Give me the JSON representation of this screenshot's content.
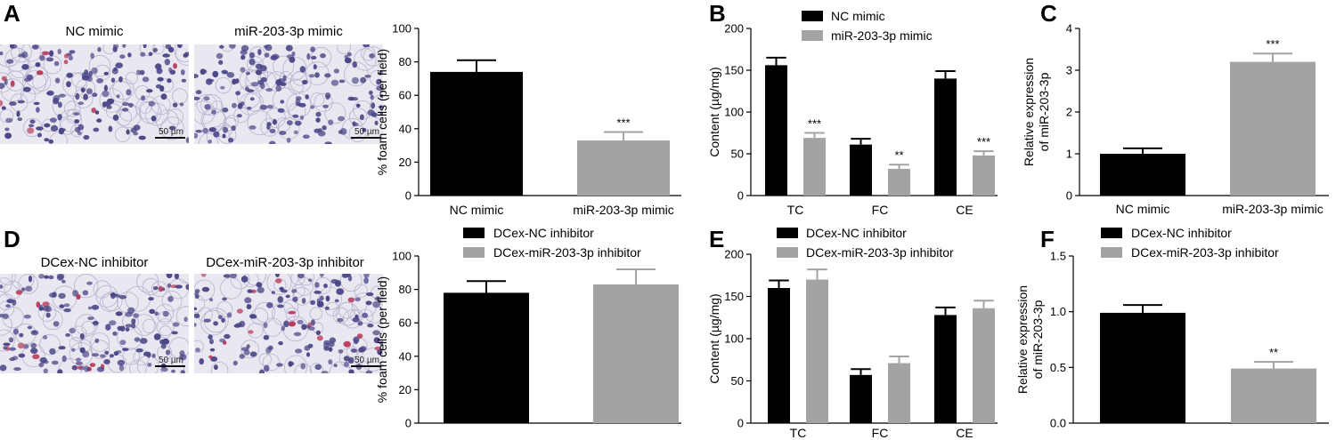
{
  "colors": {
    "black": "#000000",
    "gray": "#a3a3a3",
    "micro_bg": "#e9e7f0",
    "cell": "#4a4687",
    "red_cell": "#b8395a"
  },
  "panels": {
    "A": {
      "letter": "A",
      "images": [
        {
          "title": "NC mimic",
          "scale": "50 µm"
        },
        {
          "title": "miR-203-3p mimic",
          "scale": "50 µm"
        }
      ]
    },
    "D": {
      "letter": "D",
      "images": [
        {
          "title": "DCex-NC inhibitor",
          "scale": "50 µm"
        },
        {
          "title": "DCex-miR-203-3p inhibitor",
          "scale": "50 µm"
        }
      ]
    }
  },
  "chart_data": [
    {
      "id": "A_chart",
      "type": "bar",
      "ylabel": "% foam cells (per field)",
      "ylim": [
        0,
        100
      ],
      "yticks": [
        "0",
        "20",
        "40",
        "60",
        "80",
        "100"
      ],
      "categories": [
        "NC mimic",
        "miR-203-3p mimic"
      ],
      "values": [
        74,
        33
      ],
      "errors": [
        7,
        5
      ],
      "colors": [
        "#000000",
        "#a3a3a3"
      ],
      "annotations": [
        "",
        "***"
      ]
    },
    {
      "id": "B",
      "letter": "B",
      "type": "bar",
      "ylabel": "Content (µg/mg)",
      "ylim": [
        0,
        200
      ],
      "yticks": [
        "0",
        "50",
        "100",
        "150",
        "200"
      ],
      "categories": [
        "TC",
        "FC",
        "CE"
      ],
      "legend_position": "top-left",
      "series": [
        {
          "name": "NC mimic",
          "color": "#000000",
          "values": [
            156,
            61,
            140
          ],
          "errors": [
            9,
            7,
            9
          ],
          "annotations": [
            "",
            "",
            ""
          ]
        },
        {
          "name": "miR-203-3p mimic",
          "color": "#a3a3a3",
          "values": [
            69,
            32,
            48
          ],
          "errors": [
            6,
            5,
            5
          ],
          "annotations": [
            "***",
            "**",
            "***"
          ]
        }
      ]
    },
    {
      "id": "C",
      "letter": "C",
      "type": "bar",
      "ylabel": "Relative expression of miR-203-3p",
      "ylim": [
        0,
        4
      ],
      "yticks": [
        "0",
        "1",
        "2",
        "3",
        "4"
      ],
      "categories": [
        "NC mimic",
        "miR-203-3p mimic"
      ],
      "values": [
        1.0,
        3.2
      ],
      "errors": [
        0.13,
        0.2
      ],
      "colors": [
        "#000000",
        "#a3a3a3"
      ],
      "annotations": [
        "",
        "***"
      ]
    },
    {
      "id": "D_chart",
      "type": "bar",
      "ylabel": "% foam cells (per field)",
      "ylim": [
        0,
        100
      ],
      "yticks": [
        "0",
        "20",
        "40",
        "60",
        "80",
        "100"
      ],
      "categories": [
        "",
        ""
      ],
      "legend_position": "top",
      "legend": [
        {
          "name": "DCex-NC inhibitor",
          "color": "#000000"
        },
        {
          "name": "DCex-miR-203-3p inhibitor",
          "color": "#a3a3a3"
        }
      ],
      "values": [
        78,
        83
      ],
      "errors": [
        7,
        9
      ],
      "colors": [
        "#000000",
        "#a3a3a3"
      ],
      "annotations": [
        "",
        ""
      ]
    },
    {
      "id": "E",
      "letter": "E",
      "type": "bar",
      "ylabel": "Content (µg/mg)",
      "ylim": [
        0,
        200
      ],
      "yticks": [
        "0",
        "50",
        "100",
        "150",
        "200"
      ],
      "categories": [
        "TC",
        "FC",
        "CE"
      ],
      "legend_position": "top-left",
      "series": [
        {
          "name": "DCex-NC inhibitor",
          "color": "#000000",
          "values": [
            160,
            57,
            128
          ],
          "errors": [
            9,
            7,
            9
          ],
          "annotations": [
            "",
            "",
            ""
          ]
        },
        {
          "name": "DCex-miR-203-3p inhibitor",
          "color": "#a3a3a3",
          "values": [
            170,
            71,
            136
          ],
          "errors": [
            12,
            8,
            9
          ],
          "annotations": [
            "",
            "",
            ""
          ]
        }
      ]
    },
    {
      "id": "F",
      "letter": "F",
      "type": "bar",
      "ylabel": "Relative expression of miR-203-3p",
      "ylim": [
        0,
        1.5
      ],
      "yticks": [
        "0.0",
        "0.5",
        "1.0",
        "1.5"
      ],
      "categories": [
        "",
        ""
      ],
      "legend_position": "top",
      "legend": [
        {
          "name": "DCex-NC inhibitor",
          "color": "#000000"
        },
        {
          "name": "DCex-miR-203-3p inhibitor",
          "color": "#a3a3a3"
        }
      ],
      "values": [
        0.99,
        0.49
      ],
      "errors": [
        0.07,
        0.06
      ],
      "colors": [
        "#000000",
        "#a3a3a3"
      ],
      "annotations": [
        "",
        "**"
      ]
    }
  ]
}
